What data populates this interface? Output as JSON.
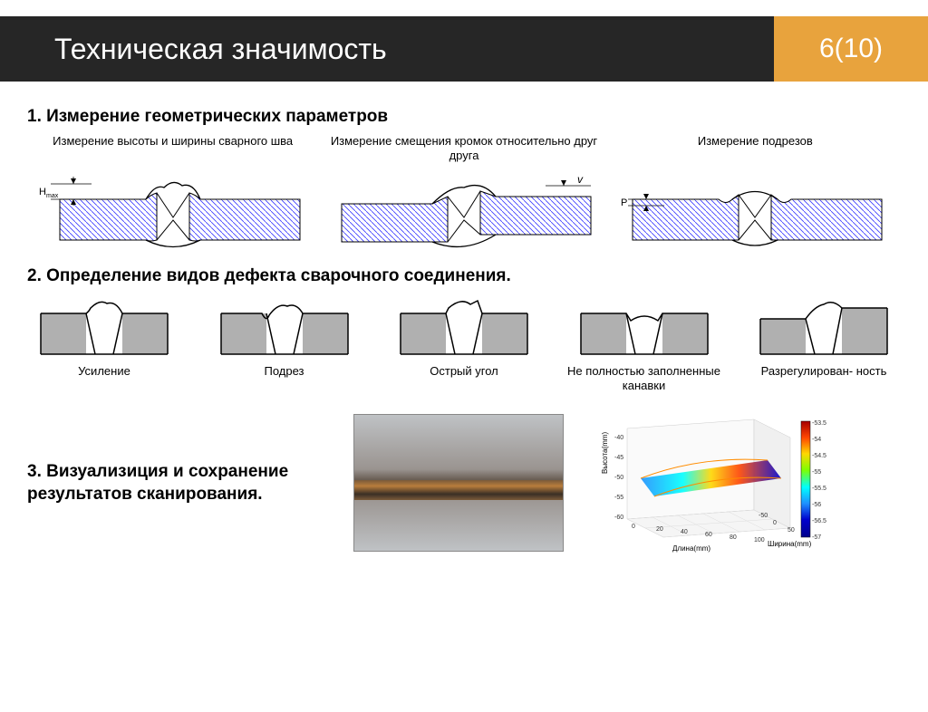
{
  "header": {
    "title": "Техническая значимость",
    "page_number": "6(10)",
    "title_bg": "#262626",
    "title_color": "#ffffff",
    "page_bg": "#e8a33d"
  },
  "section1": {
    "title": "1. Измерение геометрических параметров",
    "items": [
      {
        "caption": "Измерение высоты и ширины сварного шва",
        "h_label": "Hmax"
      },
      {
        "caption": "Измерение смещения кромок относительно друг друга",
        "h_label": "v"
      },
      {
        "caption": "Измерение подрезов",
        "h_label": "P"
      }
    ],
    "hatch_color": "#3838ff",
    "outline_color": "#000000"
  },
  "section2": {
    "title": "2. Определение видов дефекта сварочного соединения.",
    "fill_color": "#b0b0b0",
    "stroke_color": "#000000",
    "defects": [
      {
        "label": "Усиление",
        "type": "reinforcement"
      },
      {
        "label": "Подрез",
        "type": "undercut"
      },
      {
        "label": "Острый угол",
        "type": "sharp_angle"
      },
      {
        "label": "Не полностью заполненные канавки",
        "type": "underfill"
      },
      {
        "label": "Разрегулирован-\nность",
        "type": "misalignment"
      }
    ]
  },
  "section3": {
    "title": "3. Визуализиция и сохранение результатов сканирования.",
    "plot": {
      "xlabel": "Длина(mm)",
      "ylabel": "Ширина(mm)",
      "zlabel": "Высота(mm)",
      "x_ticks": [
        0,
        20,
        40,
        60,
        80,
        100
      ],
      "y_ticks": [
        -50,
        0,
        50
      ],
      "z_ticks": [
        -60,
        -55,
        -50,
        -45,
        -40
      ],
      "colorbar": {
        "min": -57,
        "max": -53.5,
        "ticks": [
          -53.5,
          -54,
          -54.5,
          -55,
          -55.5,
          -56,
          -56.5,
          -57
        ],
        "colors": [
          "#a60000",
          "#ff4500",
          "#ffd700",
          "#7fff00",
          "#00ffff",
          "#1e90ff",
          "#0000cd",
          "#00008b"
        ]
      },
      "tick_fontsize": 7,
      "label_fontsize": 8
    }
  }
}
